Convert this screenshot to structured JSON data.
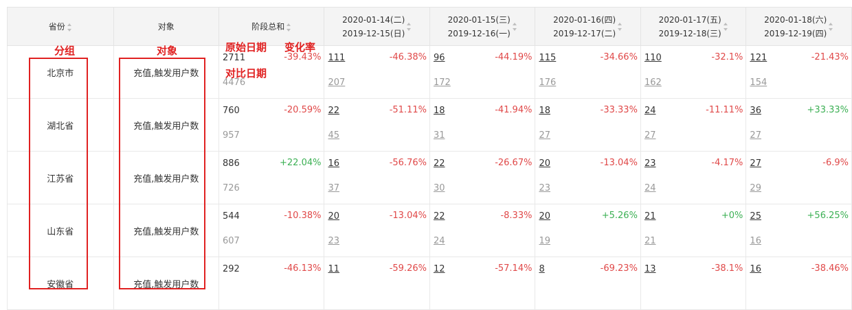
{
  "headers": {
    "province": "省份",
    "object": "对象",
    "total": "阶段总和",
    "dates": [
      {
        "current": "2020-01-14(二)",
        "compare": "2019-12-15(日)"
      },
      {
        "current": "2020-01-15(三)",
        "compare": "2019-12-16(一)"
      },
      {
        "current": "2020-01-16(四)",
        "compare": "2019-12-17(二)"
      },
      {
        "current": "2020-01-17(五)",
        "compare": "2019-12-18(三)"
      },
      {
        "current": "2020-01-18(六)",
        "compare": "2019-12-19(四)"
      }
    ]
  },
  "rows": [
    {
      "province": "北京市",
      "object": "充值,触发用户数",
      "total": {
        "current": "2711",
        "compare": "4476",
        "change": "-39.43%",
        "trend": "down"
      },
      "days": [
        {
          "current": "111",
          "compare": "207",
          "change": "-46.38%",
          "trend": "down"
        },
        {
          "current": "96",
          "compare": "172",
          "change": "-44.19%",
          "trend": "down"
        },
        {
          "current": "115",
          "compare": "176",
          "change": "-34.66%",
          "trend": "down"
        },
        {
          "current": "110",
          "compare": "162",
          "change": "-32.1%",
          "trend": "down"
        },
        {
          "current": "121",
          "compare": "154",
          "change": "-21.43%",
          "trend": "down"
        }
      ]
    },
    {
      "province": "湖北省",
      "object": "充值,触发用户数",
      "total": {
        "current": "760",
        "compare": "957",
        "change": "-20.59%",
        "trend": "down"
      },
      "days": [
        {
          "current": "22",
          "compare": "45",
          "change": "-51.11%",
          "trend": "down"
        },
        {
          "current": "18",
          "compare": "31",
          "change": "-41.94%",
          "trend": "down"
        },
        {
          "current": "18",
          "compare": "27",
          "change": "-33.33%",
          "trend": "down"
        },
        {
          "current": "24",
          "compare": "27",
          "change": "-11.11%",
          "trend": "down"
        },
        {
          "current": "36",
          "compare": "27",
          "change": "+33.33%",
          "trend": "up"
        }
      ]
    },
    {
      "province": "江苏省",
      "object": "充值,触发用户数",
      "total": {
        "current": "886",
        "compare": "726",
        "change": "+22.04%",
        "trend": "up"
      },
      "days": [
        {
          "current": "16",
          "compare": "37",
          "change": "-56.76%",
          "trend": "down"
        },
        {
          "current": "22",
          "compare": "30",
          "change": "-26.67%",
          "trend": "down"
        },
        {
          "current": "20",
          "compare": "23",
          "change": "-13.04%",
          "trend": "down"
        },
        {
          "current": "23",
          "compare": "24",
          "change": "-4.17%",
          "trend": "down"
        },
        {
          "current": "27",
          "compare": "29",
          "change": "-6.9%",
          "trend": "down"
        }
      ]
    },
    {
      "province": "山东省",
      "object": "充值,触发用户数",
      "total": {
        "current": "544",
        "compare": "607",
        "change": "-10.38%",
        "trend": "down"
      },
      "days": [
        {
          "current": "20",
          "compare": "23",
          "change": "-13.04%",
          "trend": "down"
        },
        {
          "current": "22",
          "compare": "24",
          "change": "-8.33%",
          "trend": "down"
        },
        {
          "current": "20",
          "compare": "19",
          "change": "+5.26%",
          "trend": "up"
        },
        {
          "current": "21",
          "compare": "21",
          "change": "+0%",
          "trend": "up"
        },
        {
          "current": "25",
          "compare": "16",
          "change": "+56.25%",
          "trend": "up"
        }
      ]
    },
    {
      "province": "安徽省",
      "object": "充值,触发用户数",
      "total": {
        "current": "292",
        "compare": "",
        "change": "-46.13%",
        "trend": "down"
      },
      "days": [
        {
          "current": "11",
          "compare": "",
          "change": "-59.26%",
          "trend": "down"
        },
        {
          "current": "12",
          "compare": "",
          "change": "-57.14%",
          "trend": "down"
        },
        {
          "current": "8",
          "compare": "",
          "change": "-69.23%",
          "trend": "down"
        },
        {
          "current": "13",
          "compare": "",
          "change": "-38.1%",
          "trend": "down"
        },
        {
          "current": "16",
          "compare": "",
          "change": "-38.46%",
          "trend": "down"
        }
      ]
    }
  ],
  "annotations": {
    "group": "分组",
    "object": "对象",
    "original_date": "原始日期",
    "change_rate": "变化率",
    "compare_date": "对比日期"
  },
  "colors": {
    "up": "#3cb054",
    "down": "#e04848",
    "annotation": "#e02020"
  }
}
